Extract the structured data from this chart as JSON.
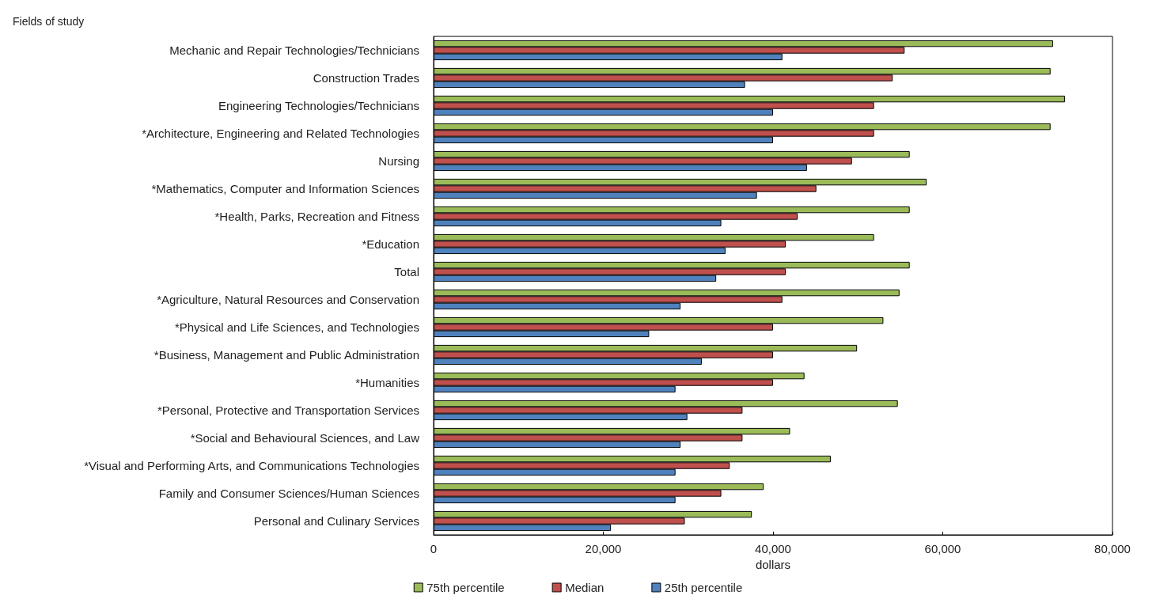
{
  "chart_data": {
    "type": "bar",
    "orientation": "horizontal",
    "ylabel": "Fields of study",
    "xlabel": "dollars",
    "categories": [
      "Mechanic and Repair Technologies/Technicians",
      "Construction Trades",
      "Engineering Technologies/Technicians",
      "*Architecture, Engineering and Related Technologies",
      "Nursing",
      "*Mathematics, Computer and Information Sciences",
      "*Health, Parks, Recreation and Fitness",
      "*Education",
      "Total",
      "*Agriculture, Natural Resources and Conservation",
      "*Physical and Life Sciences, and Technologies",
      "*Business, Management and Public Administration",
      "*Humanities",
      "*Personal, Protective and Transportation Services",
      "*Social and Behavioural Sciences, and Law",
      "*Visual and Performing Arts, and Communications Technologies",
      "Family and Consumer Sciences/Human Sciences",
      "Personal and Culinary Services"
    ],
    "series": [
      {
        "name": "75th percentile",
        "color": "#9bbb59",
        "values": [
          73000,
          72700,
          74400,
          72700,
          56100,
          58100,
          56100,
          51900,
          56100,
          54900,
          53000,
          49900,
          43700,
          54700,
          42000,
          46800,
          38900,
          37500
        ]
      },
      {
        "name": "Median",
        "color": "#c0504d",
        "values": [
          55500,
          54100,
          51900,
          51900,
          49300,
          45100,
          42900,
          41500,
          41500,
          41100,
          40000,
          40000,
          40000,
          36400,
          36400,
          34900,
          33900,
          29600
        ]
      },
      {
        "name": "25th percentile",
        "color": "#4f81bd",
        "values": [
          41100,
          36700,
          40000,
          40000,
          44000,
          38100,
          33900,
          34400,
          33300,
          29100,
          25400,
          31600,
          28500,
          29900,
          29100,
          28500,
          28500,
          20900
        ]
      }
    ],
    "xlim": [
      0,
      80000
    ],
    "xticks": [
      {
        "value": 0,
        "label": "0"
      },
      {
        "value": 20000,
        "label": "20,000"
      },
      {
        "value": 40000,
        "label": "40,000"
      },
      {
        "value": 60000,
        "label": "60,000"
      },
      {
        "value": 80000,
        "label": "80,000"
      }
    ],
    "grid": false,
    "legend": "bottom"
  }
}
